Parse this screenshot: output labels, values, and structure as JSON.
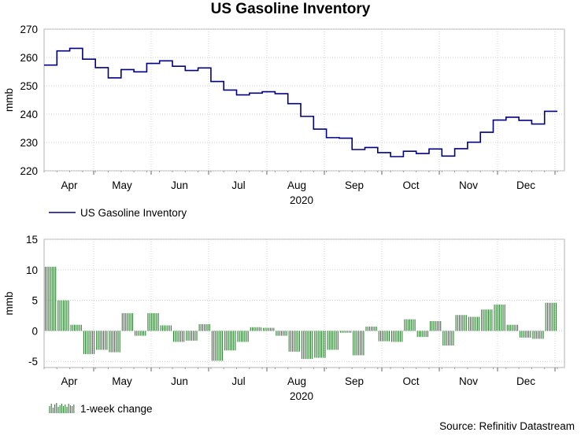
{
  "title": "US Gasoline Inventory",
  "source": "Source: Refinitiv Datastream",
  "chart_data": [
    {
      "type": "line",
      "title": "US Gasoline Inventory",
      "ylabel": "mmb",
      "xlabel": "2020",
      "ylim": [
        220,
        270
      ],
      "yticks": [
        220,
        230,
        240,
        250,
        260,
        270
      ],
      "month_labels": [
        "Apr",
        "May",
        "Jun",
        "Jul",
        "Aug",
        "Sep",
        "Oct",
        "Nov",
        "Dec"
      ],
      "color": "#000080",
      "legend": "US Gasoline Inventory",
      "series": [
        {
          "name": "US Gasoline Inventory",
          "values": [
            257.3,
            262.3,
            263.2,
            259.4,
            256.4,
            252.8,
            255.7,
            254.9,
            257.9,
            258.8,
            256.9,
            255.4,
            256.3,
            251.5,
            248.5,
            246.8,
            247.4,
            247.9,
            247.2,
            243.7,
            239.2,
            234.7,
            231.7,
            231.5,
            227.5,
            228.2,
            226.4,
            225.0,
            226.9,
            226.1,
            227.7,
            225.2,
            227.8,
            230.1,
            233.6,
            237.9,
            238.9,
            237.8,
            236.5,
            241.0
          ]
        }
      ]
    },
    {
      "type": "bar",
      "title": "1-week change",
      "ylabel": "mmb",
      "xlabel": "2020",
      "ylim": [
        -6,
        15
      ],
      "yticks": [
        -5,
        0,
        5,
        10,
        15
      ],
      "month_labels": [
        "Apr",
        "May",
        "Jun",
        "Jul",
        "Aug",
        "Sep",
        "Oct",
        "Nov",
        "Dec"
      ],
      "color": "#2e7d32",
      "legend": "1-week change",
      "series": [
        {
          "name": "1-week change",
          "values": [
            10.5,
            5.0,
            1.0,
            -3.8,
            -3.1,
            -3.5,
            2.9,
            -0.8,
            2.9,
            0.9,
            -1.8,
            -1.6,
            1.1,
            -4.9,
            -3.2,
            -1.8,
            0.6,
            0.5,
            -0.8,
            -3.4,
            -4.6,
            -4.4,
            -3.1,
            -0.3,
            -4.0,
            0.7,
            -1.7,
            -1.8,
            1.9,
            -1.0,
            1.6,
            -2.4,
            2.6,
            2.3,
            3.5,
            4.3,
            1.0,
            -1.1,
            -1.3,
            4.6
          ]
        }
      ]
    }
  ]
}
